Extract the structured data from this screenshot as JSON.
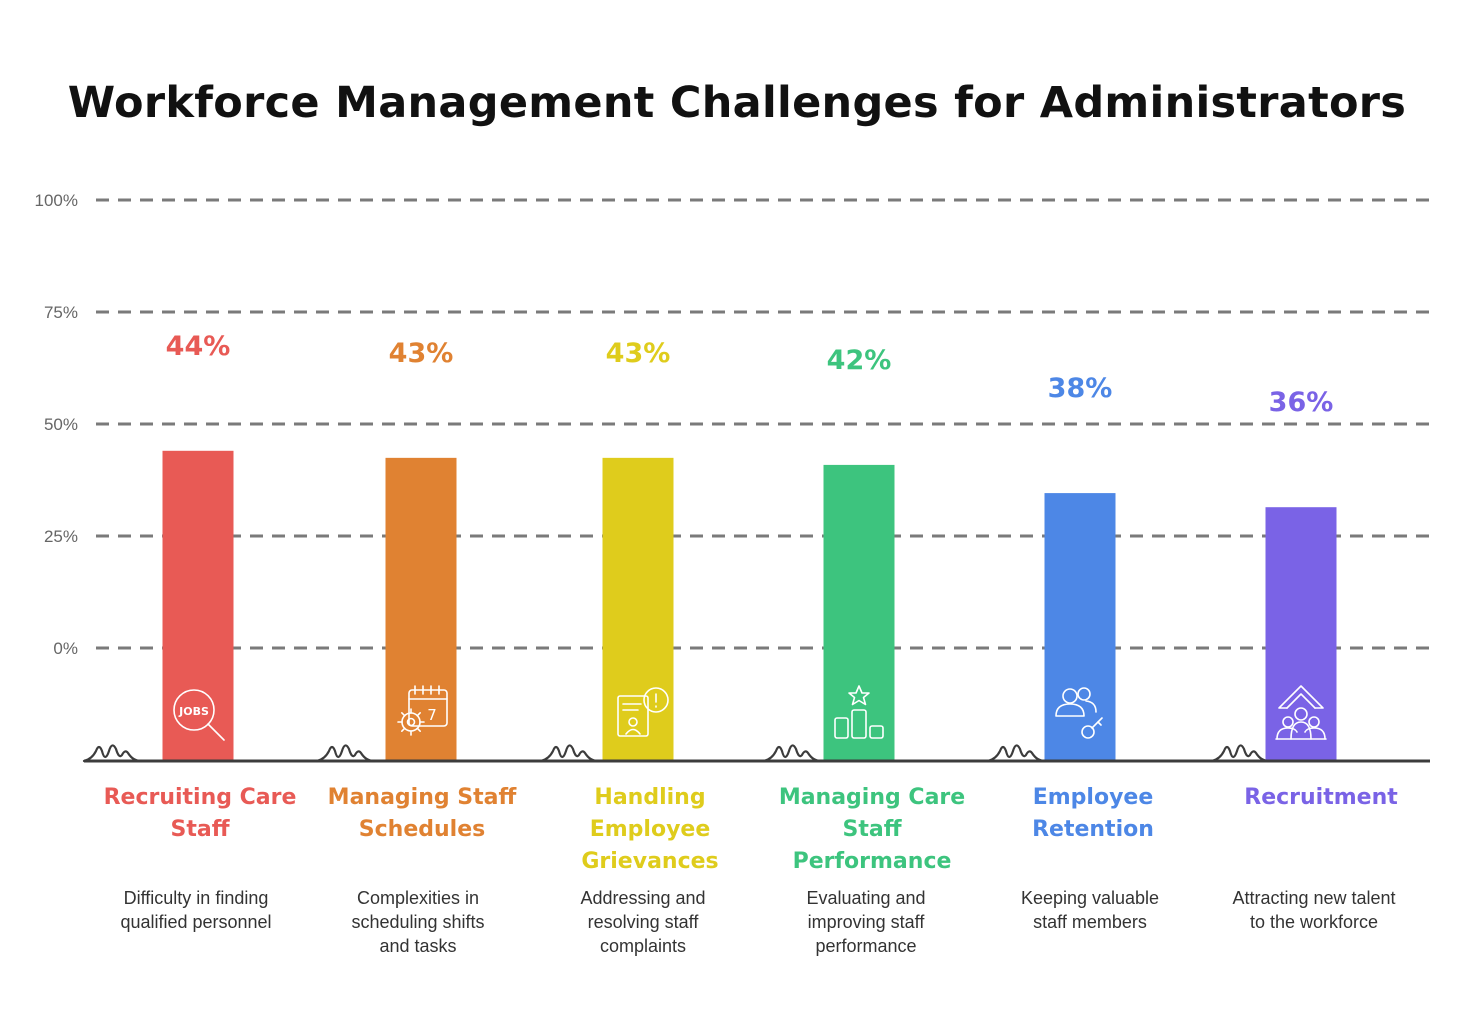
{
  "chart_data": {
    "type": "bar",
    "title": "Workforce Management Challenges for Administrators",
    "y_tick_labels": [
      "100%",
      "75%",
      "50%",
      "25%",
      "0%"
    ],
    "categories": [
      "Recruiting Care Staff",
      "Managing Staff Schedules",
      "Handling Employee Grievances",
      "Managing Care Staff Performance",
      "Employee Retention",
      "Recruitment"
    ],
    "values": [
      44,
      43,
      43,
      42,
      38,
      36
    ],
    "value_labels": [
      "44%",
      "43%",
      "43%",
      "42%",
      "38%",
      "36%"
    ],
    "descriptions": [
      "Difficulty in finding qualified personnel",
      "Complexities in scheduling shifts and tasks",
      "Addressing and resolving staff complaints",
      "Evaluating and improving staff performance",
      "Keeping valuable staff members",
      "Attracting new talent to the workforce"
    ],
    "colors": [
      "#e85a55",
      "#e08232",
      "#dfcc1c",
      "#3dc47e",
      "#4d87e6",
      "#7a63e6"
    ],
    "icons": [
      "jobs-search-icon",
      "calendar-gear-icon",
      "grievance-alert-icon",
      "performance-podium-icon",
      "retention-people-key-icon",
      "recruitment-upward-icon"
    ],
    "grid": "dashed horizontal"
  }
}
